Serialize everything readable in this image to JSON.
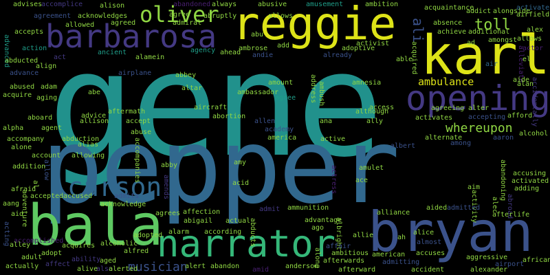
{
  "colors": {
    "background": "#000000",
    "teal": "#21918c",
    "blue": "#31688e",
    "indigo": "#3b528b",
    "navy": "#443983",
    "purple": "#481f70",
    "green": "#5ec962",
    "light_green": "#90d743",
    "yellow": "#dde318",
    "bright_green": "#35b779",
    "sea": "#1f9e89"
  },
  "words": {
    "gene": "gene",
    "pepper": "pepper",
    "bryan": "bryan",
    "bala": "bala",
    "reggie": "reggie",
    "karl": "karl",
    "narrator": "narrator",
    "barbarosa": "barbarosa",
    "opening": "opening",
    "carson": "carson",
    "oliver": "oliver",
    "whereupon": "whereupon",
    "toll": "toll",
    "ali": "ali",
    "ambulance": "ambulance",
    "musician": "musician",
    "advises": "advises",
    "accomplice": "accomplice",
    "alison": "alison",
    "abandoned": "abandoned",
    "always": "always",
    "abusive": "abusive",
    "amusement": "amusement",
    "ambition": "ambition",
    "acquaintance": "acquaintance",
    "activate": "activate",
    "agreement": "agreement",
    "acknowledges": "acknowledges",
    "agree": "agree",
    "abruptly": "abruptly",
    "abu": "abu",
    "allows": "allows",
    "accepts": "accepts",
    "allowed": "allowed",
    "agreed": "agreed",
    "admiral": "admiral",
    "addict": "addict",
    "alongside": "alongside",
    "airfield": "airfield",
    "absence": "absence",
    "alex": "alex",
    "achieve": "achieve",
    "additional": "additional",
    "action": "action",
    "ancient": "ancient",
    "agency": "agency",
    "ambrose": "ambrose",
    "andie": "andie",
    "add": "add",
    "activist": "activist",
    "acquired": "acquired",
    "amongst": "amongst",
    "ad": "ad",
    "alleviate": "alleviate",
    "actor": "actor",
    "advanced": "advanced",
    "act": "act",
    "alamein": "alamein",
    "ahead": "ahead",
    "already": "already",
    "adoptive": "adoptive",
    "abducted": "abducted",
    "align": "align",
    "able": "able",
    "el": "el",
    "advance": "advance",
    "airplane": "airplane",
    "air": "air",
    "abbey": "abbey",
    "amount": "amount",
    "address": "address",
    "amnesia": "amnesia",
    "aide": "aide",
    "alan": "alan",
    "abused": "abused",
    "adam": "adam",
    "altar": "altar",
    "ambassador": "ambassador",
    "ambush": "ambush",
    "accidentally": "accidentally",
    "acquire": "acquire",
    "aging": "aging",
    "abe": "abe",
    "agreeing": "agreeing",
    "alter": "alter",
    "allen": "allen",
    "aboard": "aboard",
    "advice": "advice",
    "aftermath": "aftermath",
    "aircraft": "aircraft",
    "abortion": "abortion",
    "access": "access",
    "although": "although",
    "accepting": "accepting",
    "afford": "afford",
    "allison": "allison",
    "accept": "accept",
    "ana": "ana",
    "ally": "ally",
    "activates": "activates",
    "alpha": "alpha",
    "agent": "agent",
    "abuse": "abuse",
    "academy": "academy",
    "alcohol": "alcohol",
    "america": "america",
    "alternate": "alternate",
    "accompany": "accompany",
    "abduction": "abduction",
    "accompanies": "accompanies",
    "active": "active",
    "aaron": "aaron",
    "alone": "alone",
    "alias": "alias",
    "among": "among",
    "account": "account",
    "allowing": "allowing",
    "albert": "albert",
    "allow": "allow",
    "amy": "amy",
    "addition": "addition",
    "abby": "abby",
    "amulet": "amulet",
    "accusing": "accusing",
    "acid": "acid",
    "ace": "ace",
    "activated": "activated",
    "al": "al",
    "amends": "amends",
    "actress": "actress",
    "aim": "aim",
    "abandoning": "abandoning",
    "adding": "adding",
    "admits": "admits",
    "afraid": "afraid",
    "accepted": "accepted",
    "accused": "accused",
    "activity": "activity",
    "aang": "aang",
    "adventure": "adventure",
    "acknowledge": "acknowledge",
    "affection": "affection",
    "ammunition": "ammunition",
    "aided": "aided",
    "admitted": "admitted",
    "alec": "alec",
    "abroad": "abroad",
    "aid": "aid",
    "agrees": "agrees",
    "admit": "admit",
    "alliance": "alliance",
    "afterlife": "afterlife",
    "abigail": "abigail",
    "actual": "actual",
    "abducts": "abducts",
    "advantage": "advantage",
    "acting": "acting",
    "ago": "ago",
    "according": "according",
    "albright": "albright",
    "allie": "allie",
    "alice": "alice",
    "accomplished": "accomplished",
    "alarm": "alarm",
    "adopted": "adopted",
    "ah": "ah",
    "almost": "almost",
    "alley": "alley",
    "alcoholic": "alcoholic",
    "acquires": "acquires",
    "affair": "affair",
    "adult": "adult",
    "adopt": "adopt",
    "alfred": "alfred",
    "ambitious": "ambitious",
    "american": "american",
    "accuses": "accuses",
    "aggressive": "aggressive",
    "ability": "ability",
    "aged": "aged",
    "afterwards": "afterwards",
    "admitting": "admitting",
    "african": "african",
    "actually": "actually",
    "affect": "affect",
    "alive": "alive",
    "also": "also",
    "alerted": "alerted",
    "alert": "alert",
    "abandon": "abandon",
    "anderson": "anderson",
    "amid": "amid",
    "along": "along",
    "afterward": "afterward",
    "accident": "accident",
    "alexander": "alexander",
    "airport": "airport"
  }
}
